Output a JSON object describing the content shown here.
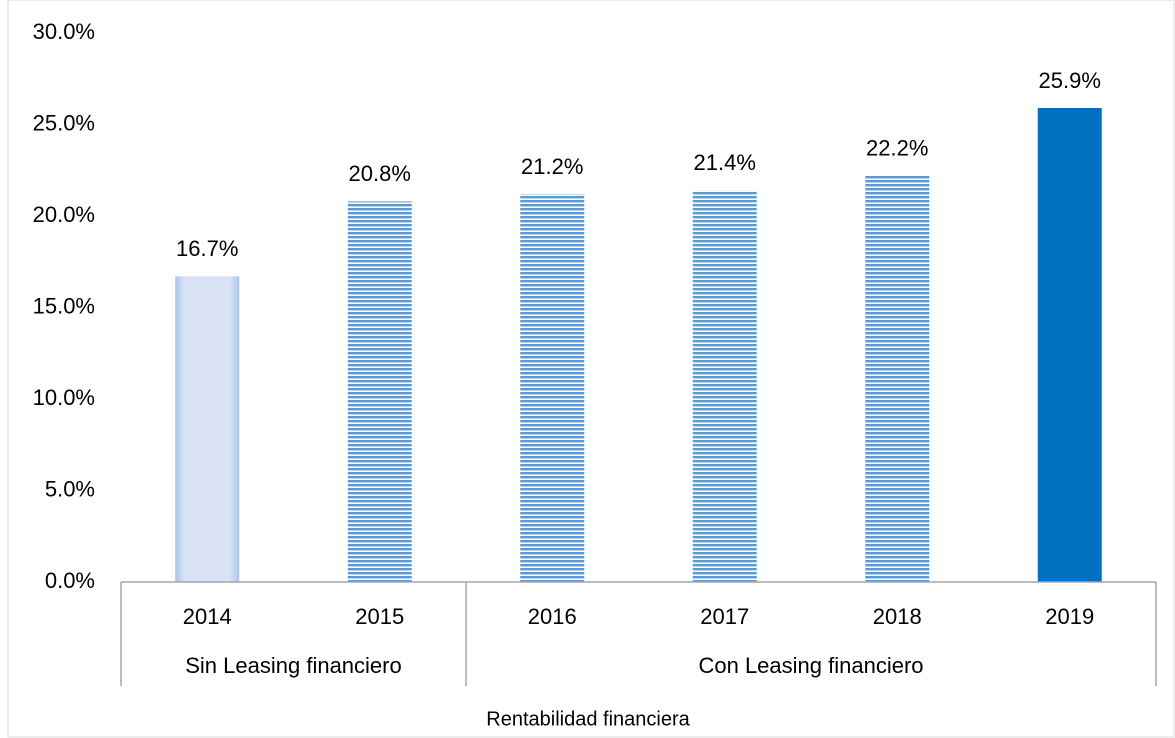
{
  "chart_data": {
    "type": "bar",
    "x_label": "Rentabilidad financiera",
    "categories": [
      "2014",
      "2015",
      "2016",
      "2017",
      "2018",
      "2019"
    ],
    "values": [
      16.7,
      20.8,
      21.2,
      21.4,
      22.2,
      25.9
    ],
    "value_labels": [
      "16.7%",
      "20.8%",
      "21.2%",
      "21.4%",
      "22.2%",
      "25.9%"
    ],
    "colors": [
      "#d9e3f3",
      "#5b9bd5",
      "#5b9bd5",
      "#5b9bd5",
      "#5b9bd5",
      "#0070c0"
    ],
    "striped": [
      false,
      true,
      true,
      true,
      true,
      false
    ],
    "groups": [
      {
        "name": "Sin Leasing financiero",
        "categories": [
          "2014",
          "2015"
        ]
      },
      {
        "name": "Con Leasing financiero",
        "categories": [
          "2016",
          "2017",
          "2018",
          "2019"
        ]
      }
    ],
    "ylim": [
      0,
      30
    ],
    "yticks": [
      {
        "value": 0,
        "label": "0.0%"
      },
      {
        "value": 5,
        "label": "5.0%"
      },
      {
        "value": 10,
        "label": "10.0%"
      },
      {
        "value": 15,
        "label": "15.0%"
      },
      {
        "value": 20,
        "label": "20.0%"
      },
      {
        "value": 25,
        "label": "25.0%"
      },
      {
        "value": 30,
        "label": "30.0%"
      }
    ],
    "grid": false
  }
}
